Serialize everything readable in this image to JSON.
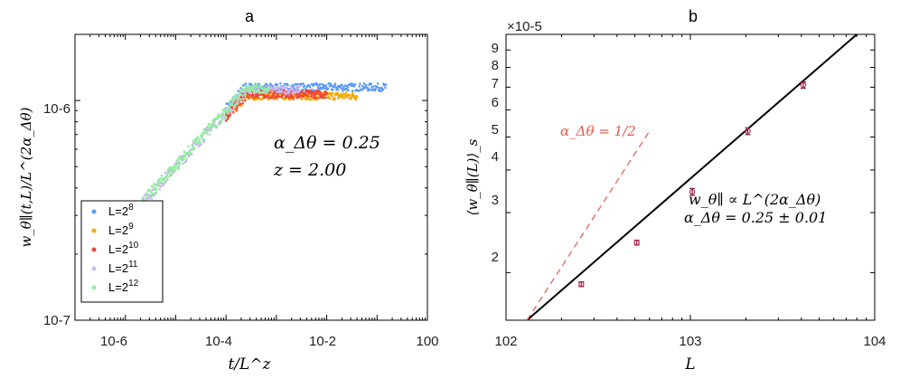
{
  "panel_a": {
    "label": "a",
    "xlabel": "t/L^z",
    "ylabel": "w_θ∥(t,L)/L^(2α_Δθ)",
    "y_tick_labels": [
      "10-7",
      "10-6"
    ],
    "x_tick_labels": [
      "10-6",
      "10-4",
      "10-2",
      "100"
    ],
    "annotation_alpha": "α_Δθ = 0.25",
    "annotation_z": "z = 2.00",
    "legend": [
      {
        "base": "L=2",
        "exp": "8",
        "color": "#5b9bf5"
      },
      {
        "base": "L=2",
        "exp": "9",
        "color": "#f5a800"
      },
      {
        "base": "L=2",
        "exp": "10",
        "color": "#f0483a"
      },
      {
        "base": "L=2",
        "exp": "11",
        "color": "#c9b8f0"
      },
      {
        "base": "L=2",
        "exp": "12",
        "color": "#8fef9a"
      }
    ]
  },
  "panel_b": {
    "label": "b",
    "xlabel": "L",
    "ylabel": "⟨w_θ∥(L)⟩_s",
    "multiplier": "×10-5",
    "y_tick_labels": [
      "2",
      "3",
      "4",
      "5",
      "6",
      "7",
      "8",
      "9"
    ],
    "x_tick_labels": [
      "102",
      "103",
      "104"
    ],
    "fit_formula": "w_θ∥ ∝ L^(2α_Δθ)",
    "fit_result": "α_Δθ = 0.25 ± 0.01",
    "ref_line_label": "α_Δθ = 1/2"
  },
  "chart_data": [
    {
      "type": "scatter",
      "title": "a",
      "xlabel": "t/L^z",
      "ylabel": "w_θ∥(t,L)/L^(2α_Δθ)",
      "xscale": "log",
      "yscale": "log",
      "xlim": [
        1e-07,
        1
      ],
      "ylim": [
        1e-07,
        2e-06
      ],
      "legend_position": "bottom-left",
      "series": [
        {
          "name": "L=2^8",
          "x_range": [
            0.0001,
            0.15
          ],
          "plateau": 1.15e-06
        },
        {
          "name": "L=2^9",
          "x_range": [
            0.0001,
            0.04
          ],
          "plateau": 1.05e-06
        },
        {
          "name": "L=2^10",
          "x_range": [
            0.0001,
            0.01
          ],
          "plateau": 1.07e-06
        },
        {
          "name": "L=2^11",
          "x_range": [
            2e-06,
            0.003
          ],
          "plateau": 1.12e-06
        },
        {
          "name": "L=2^12",
          "x_range": [
            5e-07,
            0.0007
          ],
          "plateau": 1.13e-06
        }
      ],
      "annotations": [
        "α_Δθ = 0.25",
        "z = 2.00"
      ]
    },
    {
      "type": "scatter",
      "title": "b",
      "xlabel": "L",
      "ylabel": "⟨w_θ∥(L)⟩_s (×10^-5)",
      "xscale": "log",
      "yscale": "log",
      "xlim": [
        100,
        10000
      ],
      "ylim": [
        1.45,
        10
      ],
      "series": [
        {
          "name": "data",
          "x": [
            256,
            512,
            1024,
            2048,
            4096
          ],
          "y": [
            1.85,
            2.45,
            3.45,
            5.2,
            7.1
          ],
          "yerr": [
            0.03,
            0.04,
            0.08,
            0.12,
            0.15
          ]
        },
        {
          "name": "fit α=0.25",
          "style": "solid",
          "x": [
            130,
            8000
          ],
          "y": [
            1.45,
            10.0
          ]
        },
        {
          "name": "α_Δθ = 1/2",
          "style": "dashed",
          "x": [
            130,
            600
          ],
          "y": [
            1.45,
            5.2
          ]
        }
      ],
      "annotations": [
        "w_θ∥ ∝ L^(2α_Δθ)",
        "α_Δθ = 0.25 ± 0.01"
      ]
    }
  ]
}
